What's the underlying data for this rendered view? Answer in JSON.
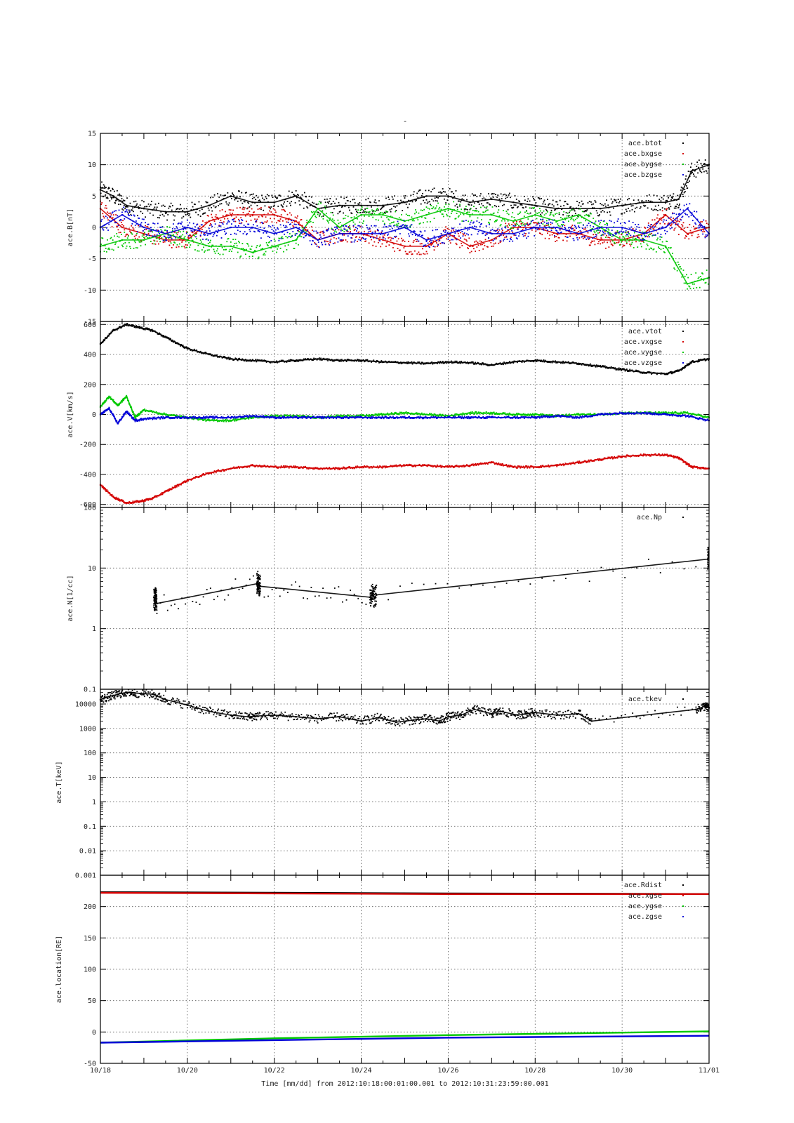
{
  "page_title": "-",
  "x_axis": {
    "tick_labels": [
      "10/18",
      "10/20",
      "10/22",
      "10/24",
      "10/26",
      "10/28",
      "10/30",
      "11/01"
    ],
    "label": "Time [mm/dd]  from 2012:10:18:00:01:00.001  to  2012:10:31:23:59:00.001",
    "range_days": [
      0,
      14
    ]
  },
  "colors": {
    "black": "#000000",
    "red": "#d40000",
    "green": "#00c800",
    "blue": "#0000d8"
  },
  "chart_data": [
    {
      "type": "scatter",
      "ylabel": "ace.B[nT]",
      "ylim": [
        -15,
        15
      ],
      "y_scale": "linear",
      "yticks": [
        -15,
        -10,
        -5,
        0,
        5,
        10,
        15
      ],
      "ytick_labels": [
        "-15",
        "-10",
        "-5",
        "0",
        "5",
        "10",
        "15"
      ],
      "grid": true,
      "legend_placement": "top-right",
      "series": [
        {
          "name": "ace.btot",
          "color": "#000000",
          "x": [
            0,
            0.3,
            0.6,
            1,
            1.5,
            2,
            2.5,
            3,
            3.5,
            4,
            4.5,
            5,
            5.5,
            6,
            6.5,
            7,
            7.5,
            8,
            8.5,
            9,
            9.5,
            10,
            10.5,
            11,
            11.5,
            12,
            12.5,
            13,
            13.3,
            13.6,
            14
          ],
          "y": [
            6,
            5,
            3.5,
            3,
            2.5,
            2.5,
            3.5,
            5,
            4,
            4,
            5,
            3,
            3.5,
            3.5,
            3.5,
            4,
            5,
            5,
            4,
            4.5,
            4,
            3.5,
            3,
            3,
            3,
            3.5,
            4,
            4,
            4.5,
            9,
            10
          ]
        },
        {
          "name": "ace.bxgse",
          "color": "#d40000",
          "x": [
            0,
            0.5,
            1,
            1.5,
            2,
            2.5,
            3,
            3.5,
            4,
            4.5,
            5,
            5.5,
            6,
            6.5,
            7,
            7.5,
            8,
            8.5,
            9,
            9.5,
            10,
            10.5,
            11,
            11.5,
            12,
            12.5,
            13,
            13.5,
            14
          ],
          "y": [
            3,
            0,
            -1,
            -2,
            -2,
            1,
            2,
            2,
            2,
            1,
            -2,
            -1,
            -1,
            -2,
            -3,
            -3,
            -1,
            -3,
            -2,
            0,
            0,
            -1,
            -1,
            -2,
            -2,
            -1,
            2,
            -1,
            0
          ]
        },
        {
          "name": "ace.bygse",
          "color": "#00c800",
          "x": [
            0,
            0.5,
            1,
            1.5,
            2,
            2.5,
            3,
            3.5,
            4,
            4.5,
            5,
            5.5,
            6,
            6.5,
            7,
            7.5,
            8,
            8.5,
            9,
            9.5,
            10,
            10.5,
            11,
            11.5,
            12,
            12.5,
            13,
            13.5,
            14
          ],
          "y": [
            -3,
            -2,
            -2,
            -1,
            -2,
            -3,
            -3,
            -4,
            -3,
            -2,
            3,
            0,
            2,
            2,
            1,
            2,
            3,
            2,
            2,
            1,
            2,
            1,
            2,
            0,
            -2,
            -2,
            -3,
            -9,
            -8
          ]
        },
        {
          "name": "ace.bzgse",
          "color": "#0000d8",
          "x": [
            0,
            0.5,
            1,
            1.5,
            2,
            2.5,
            3,
            3.5,
            4,
            4.5,
            5,
            5.5,
            6,
            6.5,
            7,
            7.5,
            8,
            8.5,
            9,
            9.5,
            10,
            10.5,
            11,
            11.5,
            12,
            12.5,
            13,
            13.5,
            14
          ],
          "y": [
            0,
            2,
            0,
            -1,
            0,
            -1,
            0,
            0,
            -1,
            0,
            -2,
            -1,
            -1,
            -1,
            0,
            -2,
            -1,
            0,
            -1,
            -1,
            0,
            0,
            -1,
            0,
            0,
            -1,
            0,
            3,
            -1
          ]
        }
      ]
    },
    {
      "type": "scatter",
      "ylabel": "ace.V[km/s]",
      "ylim": [
        -620,
        620
      ],
      "y_scale": "linear",
      "yticks": [
        -600,
        -400,
        -200,
        0,
        200,
        400,
        600
      ],
      "ytick_labels": [
        "-600",
        "-400",
        "-200",
        "0",
        "200",
        "400",
        "600"
      ],
      "grid": true,
      "legend_placement": "top-right",
      "series": [
        {
          "name": "ace.vtot",
          "color": "#000000",
          "x": [
            0,
            0.3,
            0.6,
            0.9,
            1.2,
            1.6,
            2,
            2.5,
            3,
            3.5,
            4,
            4.5,
            5,
            5.5,
            6,
            6.5,
            7,
            7.5,
            8,
            8.5,
            9,
            9.5,
            10,
            10.5,
            11,
            11.5,
            12,
            12.5,
            13,
            13.3,
            13.6,
            14
          ],
          "y": [
            470,
            560,
            600,
            580,
            560,
            500,
            440,
            400,
            370,
            360,
            350,
            360,
            370,
            360,
            360,
            350,
            345,
            340,
            350,
            345,
            330,
            350,
            360,
            350,
            340,
            320,
            300,
            280,
            270,
            290,
            350,
            370
          ]
        },
        {
          "name": "ace.vxgse",
          "color": "#d40000",
          "x": [
            0,
            0.3,
            0.6,
            0.9,
            1.2,
            1.6,
            2,
            2.5,
            3,
            3.5,
            4,
            4.5,
            5,
            5.5,
            6,
            6.5,
            7,
            7.5,
            8,
            8.5,
            9,
            9.5,
            10,
            10.5,
            11,
            11.5,
            12,
            12.5,
            13,
            13.3,
            13.6,
            14
          ],
          "y": [
            -470,
            -550,
            -590,
            -580,
            -560,
            -500,
            -440,
            -390,
            -360,
            -340,
            -350,
            -350,
            -360,
            -360,
            -350,
            -350,
            -340,
            -340,
            -350,
            -340,
            -320,
            -350,
            -350,
            -340,
            -320,
            -300,
            -280,
            -270,
            -270,
            -290,
            -350,
            -360
          ]
        },
        {
          "name": "ace.vygse",
          "color": "#00c800",
          "x": [
            0,
            0.2,
            0.4,
            0.6,
            0.8,
            1,
            1.5,
            2,
            2.5,
            3,
            3.5,
            4,
            4.5,
            5,
            5.5,
            6,
            6.5,
            7,
            7.5,
            8,
            8.5,
            9,
            9.5,
            10,
            10.5,
            11,
            11.5,
            12,
            12.5,
            13,
            13.5,
            14
          ],
          "y": [
            50,
            120,
            60,
            120,
            -20,
            30,
            0,
            -20,
            -40,
            -40,
            -20,
            -10,
            -10,
            -20,
            -10,
            -10,
            0,
            10,
            0,
            -10,
            10,
            10,
            0,
            0,
            -10,
            0,
            0,
            10,
            10,
            10,
            10,
            -20
          ]
        },
        {
          "name": "ace.vzgse",
          "color": "#0000d8",
          "x": [
            0,
            0.2,
            0.4,
            0.6,
            0.8,
            1,
            1.5,
            2,
            2.5,
            3,
            3.5,
            4,
            4.5,
            5,
            5.5,
            6,
            6.5,
            7,
            7.5,
            8,
            8.5,
            9,
            9.5,
            10,
            10.5,
            11,
            11.5,
            12,
            12.5,
            13,
            13.5,
            14
          ],
          "y": [
            0,
            40,
            -60,
            20,
            -40,
            -30,
            -20,
            -20,
            -20,
            -20,
            -10,
            -20,
            -20,
            -20,
            -20,
            -20,
            -20,
            -20,
            -20,
            -20,
            -20,
            -20,
            -20,
            -20,
            -10,
            -20,
            0,
            10,
            10,
            0,
            -10,
            -40
          ]
        }
      ]
    },
    {
      "type": "scatter",
      "ylabel": "ace.N[1/cc]",
      "ylim": [
        0.1,
        100
      ],
      "y_scale": "log",
      "yticks": [
        0.1,
        1,
        10,
        100
      ],
      "ytick_labels": [
        "0.1",
        "1",
        "10",
        "100"
      ],
      "grid": true,
      "legend_placement": "top-right",
      "series": [
        {
          "name": "ace.Np",
          "color": "#000000",
          "x": [
            1.23,
            1.25,
            1.27,
            1.3,
            3.6,
            3.62,
            3.65,
            3.68,
            6.2,
            6.25,
            6.3,
            6.35,
            13.97,
            13.99
          ],
          "y": [
            3.3,
            2.8,
            3.5,
            2.6,
            5.5,
            6,
            5.2,
            5,
            3.3,
            3.8,
            3.2,
            3.6,
            14,
            17
          ]
        }
      ]
    },
    {
      "type": "scatter",
      "ylabel": "ace.T[keV]",
      "ylim": [
        0.001,
        40000
      ],
      "y_scale": "log",
      "yticks": [
        0.001,
        0.01,
        0.1,
        1,
        10,
        100,
        1000,
        10000
      ],
      "ytick_labels": [
        "0.001",
        "0.01",
        "0.1",
        "1",
        "10",
        "100",
        "1000",
        "10000"
      ],
      "grid": true,
      "legend_placement": "top-right",
      "series": [
        {
          "name": "ace.tkev",
          "color": "#000000",
          "x": [
            0,
            0.2,
            0.4,
            0.6,
            0.8,
            1.2,
            1.5,
            2,
            2.5,
            3,
            3.4,
            3.6,
            4,
            4.5,
            5,
            5.5,
            6,
            6.4,
            6.8,
            7.2,
            7.5,
            7.8,
            8,
            8.3,
            8.6,
            9,
            9.2,
            9.6,
            9.8,
            10,
            10.5,
            11,
            11.3,
            13.7,
            13.9,
            14
          ],
          "y": [
            15000,
            20000,
            25000,
            30000,
            28000,
            25000,
            15000,
            9000,
            5000,
            3500,
            3000,
            3200,
            3500,
            3000,
            2500,
            3000,
            2000,
            2800,
            1800,
            2200,
            2500,
            2000,
            3000,
            3500,
            6000,
            4000,
            5000,
            3500,
            4000,
            4500,
            3500,
            4000,
            2000,
            6000,
            8000,
            7000
          ]
        }
      ]
    },
    {
      "type": "line",
      "ylabel": "ace.location[RE]",
      "ylim": [
        -50,
        250
      ],
      "y_scale": "linear",
      "yticks": [
        -50,
        0,
        50,
        100,
        150,
        200
      ],
      "ytick_labels": [
        "-50",
        "0",
        "50",
        "100",
        "150",
        "200"
      ],
      "grid": true,
      "legend_placement": "top-right",
      "series": [
        {
          "name": "ace.Rdist",
          "color": "#000000",
          "x": [
            0,
            4,
            8,
            14
          ],
          "y": [
            223,
            222,
            221,
            220
          ]
        },
        {
          "name": "ace.xgse",
          "color": "#d40000",
          "x": [
            0,
            4,
            8,
            14
          ],
          "y": [
            222,
            221,
            220,
            220
          ]
        },
        {
          "name": "ace.ygse",
          "color": "#00c800",
          "x": [
            0,
            4,
            8,
            14
          ],
          "y": [
            -17,
            -10,
            -5,
            1
          ]
        },
        {
          "name": "ace.zgse",
          "color": "#0000d8",
          "x": [
            0,
            4,
            8,
            14
          ],
          "y": [
            -17,
            -13,
            -9,
            -6
          ]
        }
      ]
    }
  ]
}
